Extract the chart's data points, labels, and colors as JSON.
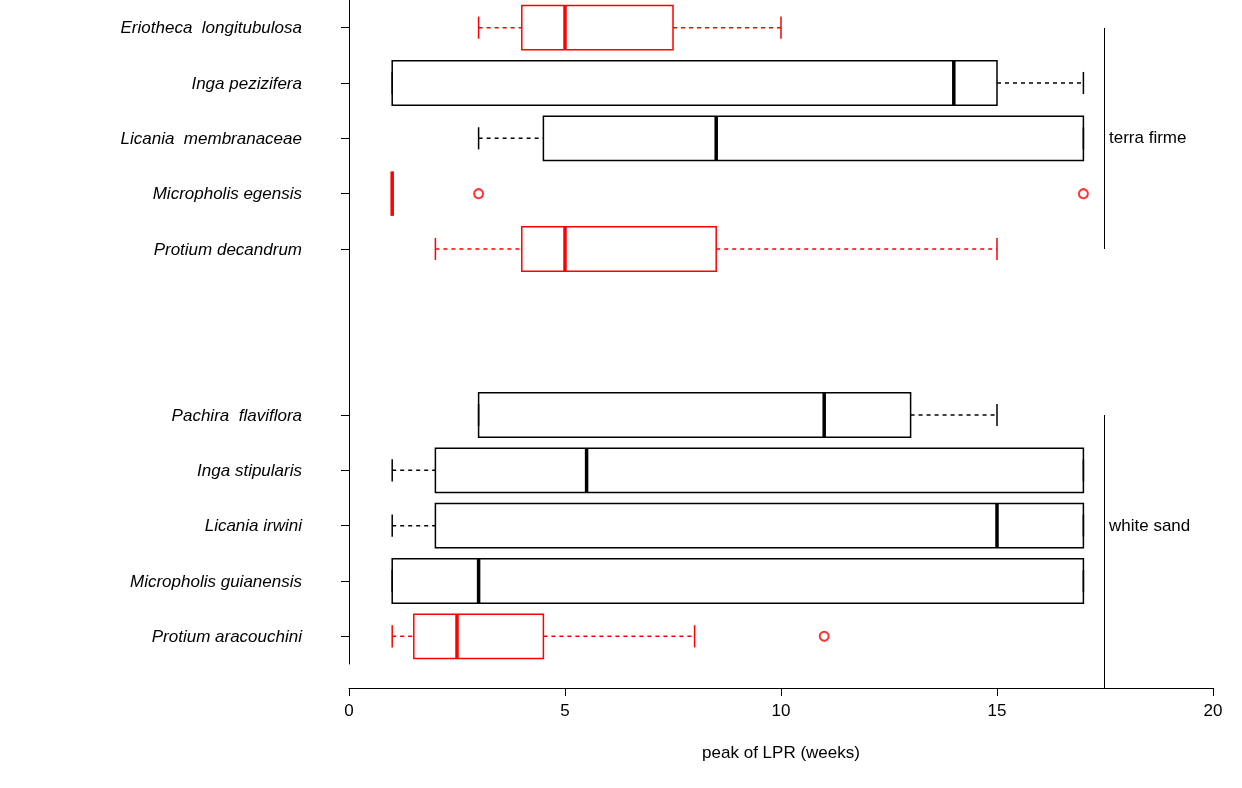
{
  "chart_data": {
    "type": "box",
    "orientation": "horizontal",
    "xlabel": "peak of LPR (weeks)",
    "categories": [
      "Eriotheca  longitubulosa",
      "Inga pezizifera",
      "Licania  membranaceae",
      "Micropholis egensis",
      "Protium decandrum",
      null,
      null,
      "Pachira  flaviflora",
      "Inga stipularis",
      "Licania irwini",
      "Micropholis guianensis",
      "Protium aracouchini"
    ],
    "boxes": [
      {
        "low": 3,
        "q1": 4,
        "median": 5,
        "q3": 7.5,
        "high": 10
      },
      {
        "low": 1,
        "q1": 1,
        "median": 14,
        "q3": 15,
        "high": 17
      },
      {
        "low": 3,
        "q1": 4.5,
        "median": 8.5,
        "q3": 17,
        "high": 17
      },
      {
        "low": 1,
        "q1": 1,
        "median": 1,
        "q3": 1,
        "high": 1,
        "outliers": [
          3,
          17
        ]
      },
      {
        "low": 2,
        "q1": 4,
        "median": 5,
        "q3": 8.5,
        "high": 15
      },
      null,
      null,
      {
        "low": 3,
        "q1": 3,
        "median": 11,
        "q3": 13,
        "high": 15
      },
      {
        "low": 1,
        "q1": 2,
        "median": 5.5,
        "q3": 17,
        "high": 17
      },
      {
        "low": 1,
        "q1": 2,
        "median": 15,
        "q3": 17,
        "high": 17
      },
      {
        "low": 1,
        "q1": 1,
        "median": 3,
        "q3": 17,
        "high": 17
      },
      {
        "low": 1,
        "q1": 1.5,
        "median": 2.5,
        "q3": 4.5,
        "high": 8,
        "outliers": [
          11
        ]
      }
    ],
    "colors": [
      "#ff0000",
      "#000000",
      "#000000",
      "#ff0000",
      "#ff0000",
      null,
      null,
      "#000000",
      "#000000",
      "#000000",
      "#000000",
      "#ff0000"
    ],
    "xlim": [
      0,
      20
    ],
    "xticks": [
      0,
      5,
      10,
      15,
      20
    ],
    "annotations": [
      "terra firme",
      "white sand"
    ]
  }
}
